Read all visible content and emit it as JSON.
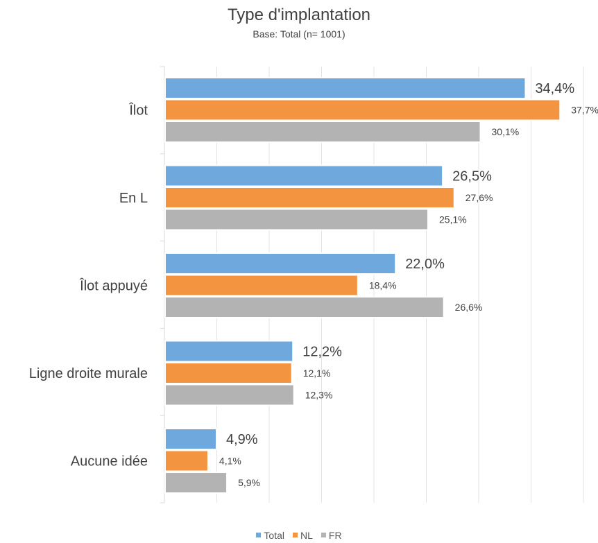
{
  "chart_data": {
    "type": "bar",
    "orientation": "horizontal",
    "title": "Type d'implantation",
    "subtitle": "Base: Total (n= 1001)",
    "categories": [
      "Îlot",
      "En L",
      "Îlot appuyé",
      "Ligne droite murale",
      "Aucune idée"
    ],
    "series": [
      {
        "name": "Total",
        "color": "#6FA8DC",
        "values": [
          34.4,
          26.5,
          22.0,
          12.2,
          4.9
        ],
        "labels": [
          "34,4%",
          "26,5%",
          "22,0%",
          "12,2%",
          "4,9%"
        ]
      },
      {
        "name": "NL",
        "color": "#F39440",
        "values": [
          37.7,
          27.6,
          18.4,
          12.1,
          4.1
        ],
        "labels": [
          "37,7%",
          "27,6%",
          "18,4%",
          "12,1%",
          "4,1%"
        ]
      },
      {
        "name": "FR",
        "color": "#B3B3B3",
        "values": [
          30.1,
          25.1,
          26.6,
          12.3,
          5.9
        ],
        "labels": [
          "30,1%",
          "25,1%",
          "26,6%",
          "12,3%",
          "5,9%"
        ]
      }
    ],
    "xlim": [
      0,
      40
    ],
    "grid": true,
    "legend_position": "bottom"
  }
}
